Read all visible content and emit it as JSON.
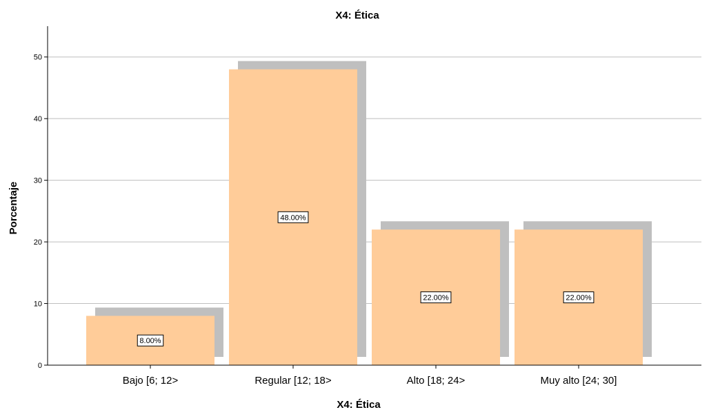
{
  "chart_data": {
    "type": "bar",
    "title": "X4: Ética",
    "xlabel": "X4: Ética",
    "ylabel": "Porcentaje",
    "categories": [
      "Bajo [6; 12>",
      "Regular [12; 18>",
      "Alto [18; 24>",
      "Muy alto [24; 30]"
    ],
    "values": [
      8,
      48,
      22,
      22
    ],
    "data_labels": [
      "8.00%",
      "48.00%",
      "22.00%",
      "22.00%"
    ],
    "ylim": [
      0,
      55
    ],
    "yticks": [
      "0",
      "10",
      "20",
      "30",
      "40",
      "50"
    ],
    "grid": true,
    "legend": "none",
    "colors": {
      "bar": "#FFCC99",
      "shadow": "#BFBFBF",
      "grid": "#BEBEBE",
      "axis": "#000000"
    }
  }
}
